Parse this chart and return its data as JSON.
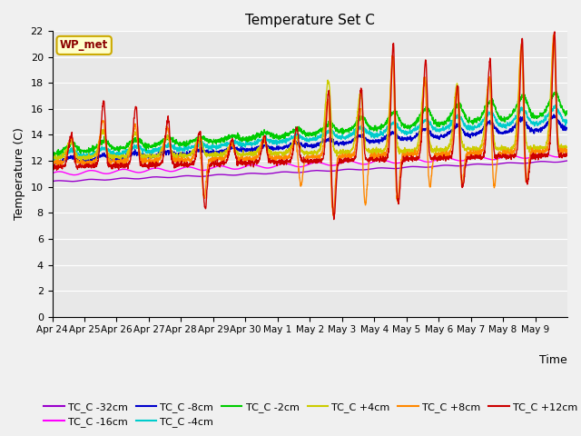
{
  "title": "Temperature Set C",
  "xlabel": "Time",
  "ylabel": "Temperature (C)",
  "ylim": [
    0,
    22
  ],
  "yticks": [
    0,
    2,
    4,
    6,
    8,
    10,
    12,
    14,
    16,
    18,
    20,
    22
  ],
  "x_labels": [
    "Apr 24",
    "Apr 25",
    "Apr 26",
    "Apr 27",
    "Apr 28",
    "Apr 29",
    "Apr 30",
    "May 1",
    "May 2",
    "May 3",
    "May 4",
    "May 5",
    "May 6",
    "May 7",
    "May 8",
    "May 9"
  ],
  "legend_labels": [
    "TC_C -32cm",
    "TC_C -16cm",
    "TC_C -8cm",
    "TC_C -4cm",
    "TC_C -2cm",
    "TC_C +4cm",
    "TC_C +8cm",
    "TC_C +12cm"
  ],
  "colors": {
    "TC_C -32cm": "#9900cc",
    "TC_C -16cm": "#ff00ff",
    "TC_C -8cm": "#0000cc",
    "TC_C -4cm": "#00cccc",
    "TC_C -2cm": "#00cc00",
    "TC_C +4cm": "#cccc00",
    "TC_C +8cm": "#ff8800",
    "TC_C +12cm": "#cc0000"
  },
  "bg_color": "#e8e8e8",
  "grid_color": "#ffffff",
  "fig_bg": "#f0f0f0"
}
